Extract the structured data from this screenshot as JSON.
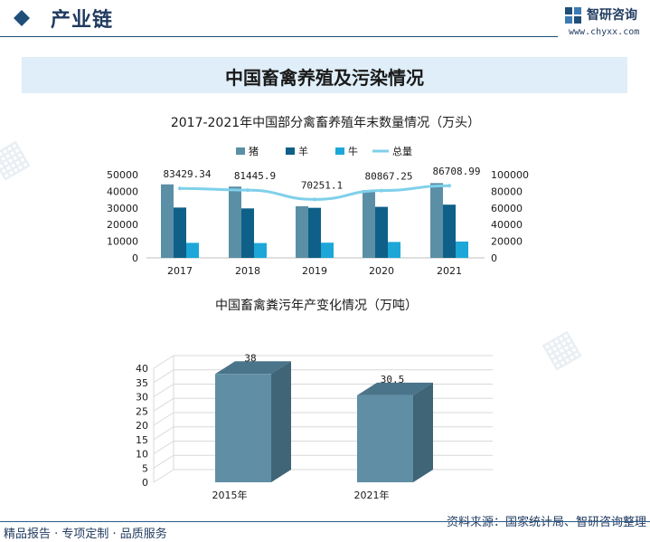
{
  "header": {
    "section_title": "产业链",
    "brand_name": "智研咨询",
    "brand_url": "www.chyxx.com"
  },
  "main_title": "中国畜禽养殖及污染情况",
  "colors": {
    "pig": "#5b8fa6",
    "sheep": "#0e6088",
    "cattle": "#1da7d8",
    "total": "#7fd0ea",
    "bar3d_front": "#5f8ea5",
    "bar3d_side": "#3f6577",
    "bar3d_top": "#4a7489",
    "accent": "#1f4e79"
  },
  "chart_data": [
    {
      "type": "bar",
      "title": "2017-2021年中国部分禽畜养殖年末数量情况（万头）",
      "categories": [
        "2017",
        "2018",
        "2019",
        "2020",
        "2021"
      ],
      "series": [
        {
          "name": "猪",
          "type": "bar",
          "axis": "left",
          "values": [
            44159,
            42817,
            31041,
            40650,
            44922
          ]
        },
        {
          "name": "羊",
          "type": "bar",
          "axis": "left",
          "values": [
            30232,
            29714,
            30072,
            30655,
            31969
          ]
        },
        {
          "name": "牛",
          "type": "bar",
          "axis": "left",
          "values": [
            9039,
            8915,
            9138,
            9562,
            9817
          ]
        },
        {
          "name": "总量",
          "type": "line",
          "axis": "right",
          "values": [
            83429.34,
            81445.9,
            70251.1,
            80867.25,
            86708.99
          ]
        }
      ],
      "data_labels": [
        "83429.34",
        "81445.9",
        "70251.1",
        "80867.25",
        "86708.99"
      ],
      "y_left_ticks": [
        "50000",
        "40000",
        "30000",
        "20000",
        "10000",
        "0"
      ],
      "y_right_ticks": [
        "100000",
        "80000",
        "60000",
        "40000",
        "20000",
        "0"
      ],
      "ylim_left": [
        0,
        50000
      ],
      "ylim_right": [
        0,
        100000
      ],
      "legend": "top-center",
      "grid": false
    },
    {
      "type": "bar",
      "title": "中国畜禽粪污年产变化情况（万吨）",
      "categories": [
        "2015年",
        "2021年"
      ],
      "values": [
        38,
        30.5
      ],
      "data_labels": [
        "38",
        "30.5"
      ],
      "y_ticks": [
        "40",
        "35",
        "30",
        "25",
        "20",
        "15",
        "10",
        "5",
        "0"
      ],
      "ylim": [
        0,
        40
      ],
      "style": "3d",
      "grid": true
    }
  ],
  "footer": {
    "tagline": "精品报告 · 专项定制 · 品质服务",
    "source": "资料来源：国家统计局、智研咨询整理"
  }
}
